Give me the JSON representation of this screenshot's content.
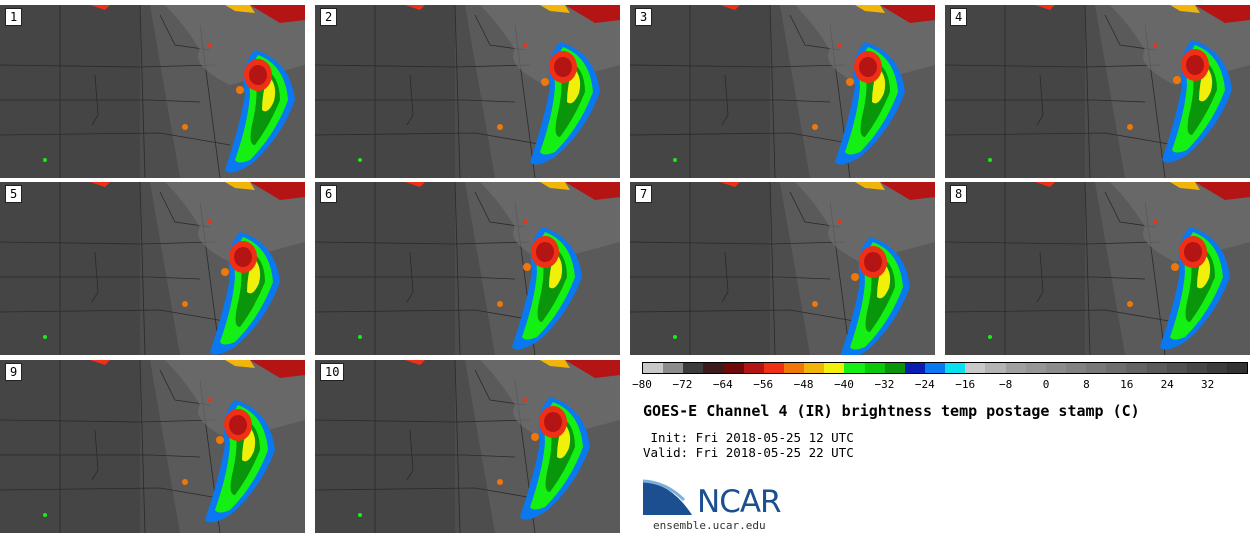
{
  "panels": [
    {
      "label": "1"
    },
    {
      "label": "2"
    },
    {
      "label": "3"
    },
    {
      "label": "4"
    },
    {
      "label": "5"
    },
    {
      "label": "6"
    },
    {
      "label": "7"
    },
    {
      "label": "8"
    },
    {
      "label": "9"
    },
    {
      "label": "10"
    }
  ],
  "colorbar": {
    "colors": [
      "#c8c8c8",
      "#8c8c8c",
      "#3c3c3c",
      "#3c1c1c",
      "#6e0a0a",
      "#b41414",
      "#f03014",
      "#f0780a",
      "#f0b40a",
      "#f0f00a",
      "#14f014",
      "#0ac80a",
      "#0a960a",
      "#0a1eb4",
      "#0a78f0",
      "#0ae1f0",
      "#c8c8c8",
      "#b4b4b4",
      "#a0a0a0",
      "#969696",
      "#8c8c8c",
      "#828282",
      "#787878",
      "#6e6e6e",
      "#646464",
      "#5a5a5a",
      "#505050",
      "#464646",
      "#3c3c3c",
      "#323232"
    ],
    "ticks": [
      "−80",
      "−72",
      "−64",
      "−56",
      "−48",
      "−40",
      "−32",
      "−24",
      "−16",
      "−8",
      "0",
      "8",
      "16",
      "24",
      "32"
    ]
  },
  "title": "GOES-E Channel 4 (IR) brightness temp postage stamp (C)",
  "init": " Init: Fri 2018-05-25 12 UTC",
  "valid": "Valid: Fri 2018-05-25 22 UTC",
  "logo": {
    "name": "NCAR",
    "url": "ensemble.ucar.edu"
  }
}
